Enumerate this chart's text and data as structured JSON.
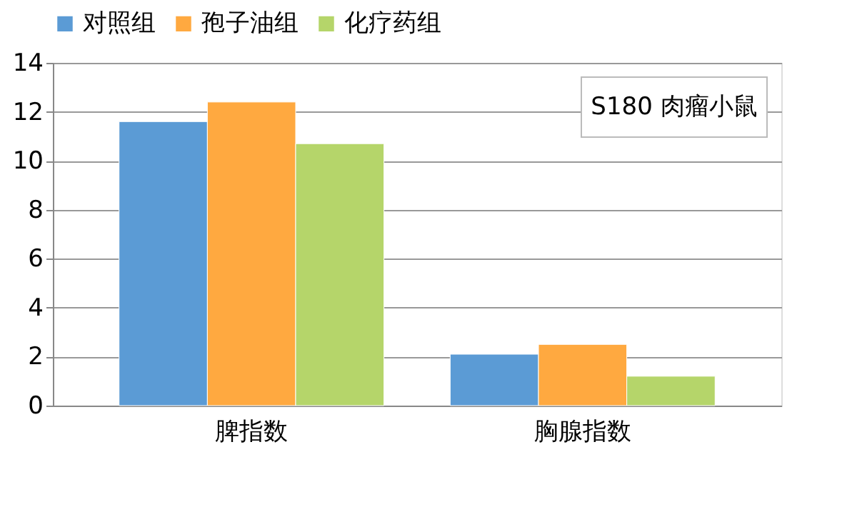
{
  "chart_data": {
    "type": "bar",
    "categories": [
      "脾指数",
      "胸腺指数"
    ],
    "series": [
      {
        "name": "对照组",
        "color": "#5b9bd5",
        "values": [
          11.6,
          2.1
        ]
      },
      {
        "name": "孢子油组",
        "color": "#ffa940",
        "values": [
          12.4,
          2.5
        ]
      },
      {
        "name": "化疗药组",
        "color": "#b5d56a",
        "values": [
          10.7,
          1.2
        ]
      }
    ],
    "ylim": [
      0,
      14
    ],
    "yticks": [
      0,
      2,
      4,
      6,
      8,
      10,
      12,
      14
    ],
    "grid": "y",
    "legend": "top",
    "annotations": [
      "S180 肉瘤小鼠"
    ]
  }
}
